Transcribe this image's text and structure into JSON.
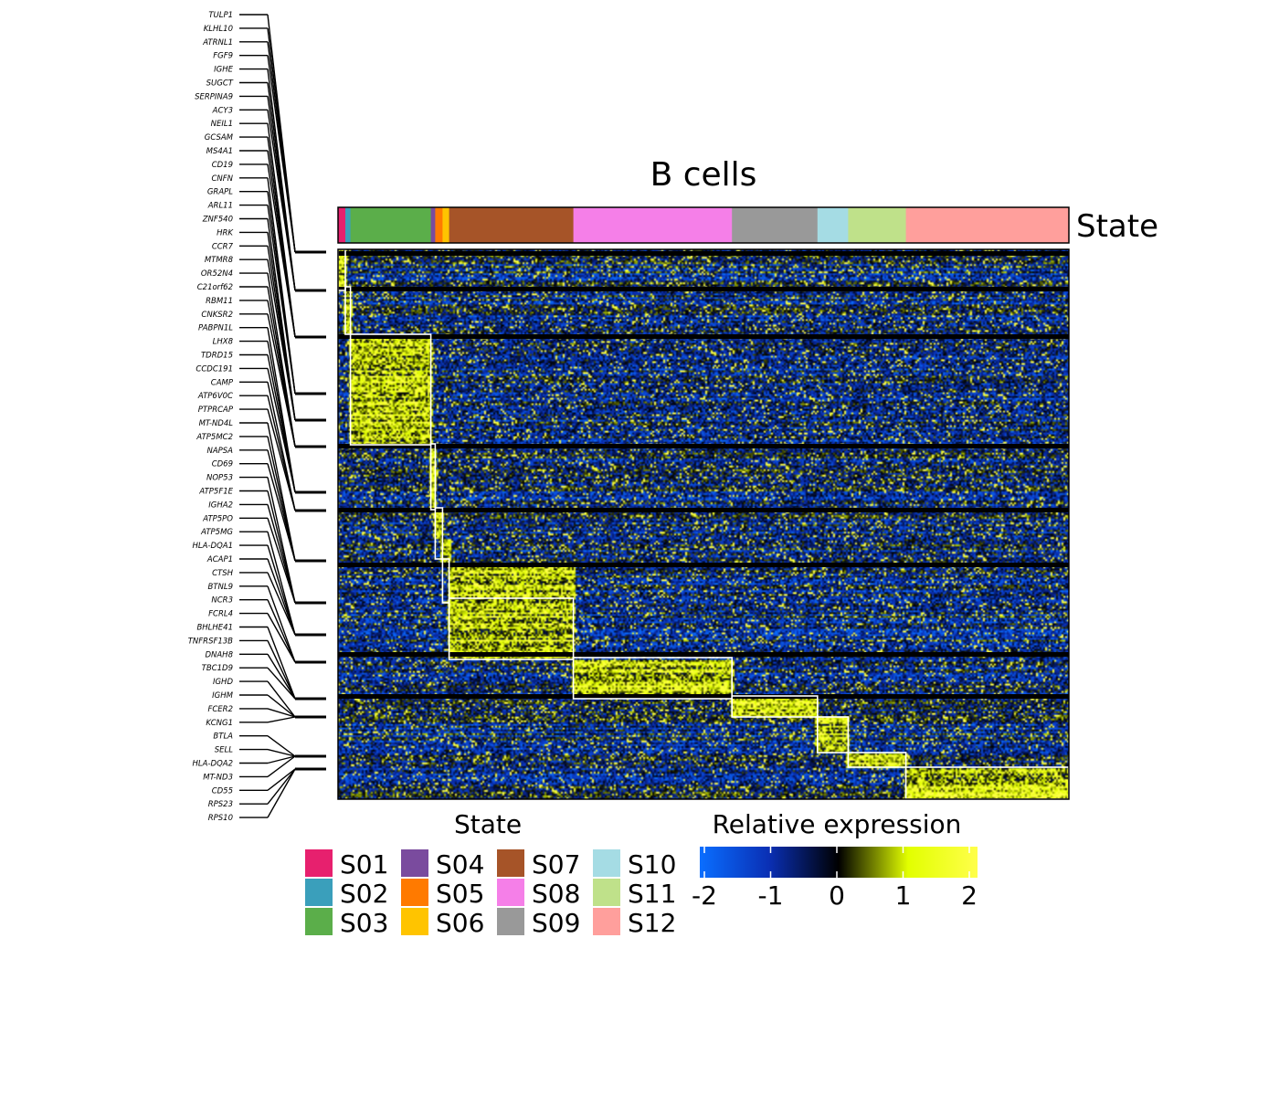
{
  "chart_data": {
    "type": "heatmap",
    "title": "B cells",
    "annotation_label": "State",
    "states": [
      {
        "name": "S01",
        "color": "#E7206E",
        "fraction": 0.01
      },
      {
        "name": "S02",
        "color": "#3A9FBB",
        "fraction": 0.007
      },
      {
        "name": "S03",
        "color": "#5BAE4A",
        "fraction": 0.11
      },
      {
        "name": "S04",
        "color": "#7A4B9E",
        "fraction": 0.006
      },
      {
        "name": "S05",
        "color": "#FF7A00",
        "fraction": 0.01
      },
      {
        "name": "S06",
        "color": "#FFC400",
        "fraction": 0.009
      },
      {
        "name": "S07",
        "color": "#A65428",
        "fraction": 0.17
      },
      {
        "name": "S08",
        "color": "#F57FE8",
        "fraction": 0.217
      },
      {
        "name": "S09",
        "color": "#999999",
        "fraction": 0.117
      },
      {
        "name": "S10",
        "color": "#A5DCE4",
        "fraction": 0.042
      },
      {
        "name": "S11",
        "color": "#BFE18A",
        "fraction": 0.079
      },
      {
        "name": "S12",
        "color": "#FF9F9C",
        "fraction": 0.223
      }
    ],
    "colorscale": {
      "title": "Relative expression",
      "stops": [
        {
          "value": -2,
          "color": "#0A6EFF"
        },
        {
          "value": -1,
          "color": "#0A2FB4"
        },
        {
          "value": 0,
          "color": "#000000"
        },
        {
          "value": 1,
          "color": "#E2FF00"
        },
        {
          "value": 2,
          "color": "#FFFF4A"
        }
      ],
      "ticks": [
        "-2",
        "-1",
        "0",
        "1",
        "2"
      ]
    },
    "genes": [
      "TULP1",
      "KLHL10",
      "ATRNL1",
      "FGF9",
      "IGHE",
      "SUGCT",
      "SERPINA9",
      "ACY3",
      "NEIL1",
      "GCSAM",
      "MS4A1",
      "CD19",
      "CNFN",
      "GRAPL",
      "ARL11",
      "ZNF540",
      "HRK",
      "CCR7",
      "MTMR8",
      "OR52N4",
      "C21orf62",
      "RBM11",
      "CNKSR2",
      "PABPN1L",
      "LHX8",
      "TDRD15",
      "CCDC191",
      "CAMP",
      "ATP6V0C",
      "PTPRCAP",
      "MT-ND4L",
      "ATP5MC2",
      "NAPSA",
      "CD69",
      "NOP53",
      "ATP5F1E",
      "IGHA2",
      "ATP5PO",
      "ATP5MG",
      "HLA-DQA1",
      "ACAP1",
      "CTSH",
      "BTNL9",
      "NCR3",
      "FCRL4",
      "BHLHE41",
      "TNFRSF13B",
      "DNAH8",
      "TBC1D9",
      "IGHD",
      "IGHM",
      "FCER2",
      "KCNG1",
      "BTLA",
      "SELL",
      "HLA-DQA2",
      "MT-ND3",
      "CD55",
      "RPS23",
      "RPS10"
    ]
  }
}
